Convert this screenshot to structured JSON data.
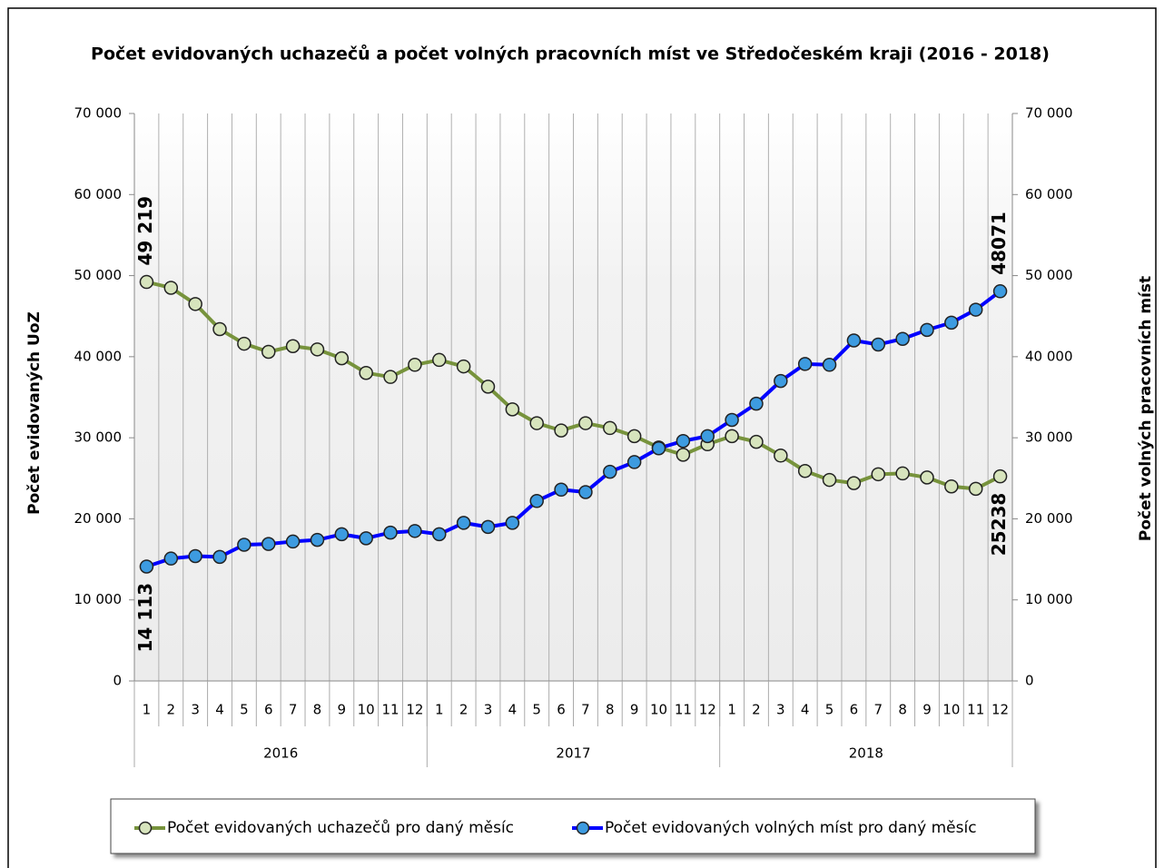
{
  "chart_data": {
    "type": "line",
    "title": "Počet evidovaných uchazečů a počet volných pracovních míst ve Středočeském kraji (2016 - 2018)",
    "ylabel": "Počet evidovaných UoZ",
    "y2label": "Počet volných pracovních míst",
    "categories": [
      "1",
      "2",
      "3",
      "4",
      "5",
      "6",
      "7",
      "8",
      "9",
      "10",
      "11",
      "12",
      "1",
      "2",
      "3",
      "4",
      "5",
      "6",
      "7",
      "8",
      "9",
      "10",
      "11",
      "12",
      "1",
      "2",
      "3",
      "4",
      "5",
      "6",
      "7",
      "8",
      "9",
      "10",
      "11",
      "12"
    ],
    "category_groups": [
      "2016",
      "2017",
      "2018"
    ],
    "series": [
      {
        "name": "Počet evidovaných uchazečů pro daný měsíc",
        "color": "#77933c",
        "marker_color": "#d7e4bd",
        "label_color": "#4f6228",
        "axis": "y",
        "values": [
          49219,
          48500,
          46500,
          43400,
          41600,
          40600,
          41300,
          40900,
          39800,
          38000,
          37500,
          39000,
          39600,
          38800,
          36300,
          33500,
          31800,
          30900,
          31800,
          31200,
          30200,
          28800,
          27900,
          29200,
          30200,
          29500,
          27800,
          25900,
          24800,
          24400,
          25500,
          25600,
          25100,
          24000,
          23700,
          25238
        ],
        "value_labels": [
          "49 219",
          null,
          null,
          null,
          null,
          null,
          null,
          null,
          null,
          null,
          null,
          null,
          null,
          null,
          null,
          null,
          null,
          null,
          null,
          null,
          null,
          null,
          null,
          null,
          null,
          null,
          null,
          null,
          null,
          null,
          null,
          null,
          null,
          null,
          null,
          "25238"
        ]
      },
      {
        "name": "Počet evidovaných volných míst pro daný měsíc",
        "color": "#0000ff",
        "marker_color": "#3d9be0",
        "label_color": "#0000ff",
        "axis": "y2",
        "values": [
          14113,
          15100,
          15400,
          15300,
          16800,
          16900,
          17200,
          17400,
          18100,
          17600,
          18300,
          18500,
          18100,
          19500,
          19000,
          19500,
          22200,
          23600,
          23300,
          25800,
          27000,
          28700,
          29600,
          30200,
          32200,
          34200,
          37000,
          39100,
          39000,
          42000,
          41500,
          42200,
          43300,
          44200,
          45800,
          48071
        ],
        "value_labels": [
          "14 113",
          null,
          null,
          null,
          null,
          null,
          null,
          null,
          null,
          null,
          null,
          null,
          null,
          null,
          null,
          null,
          null,
          null,
          null,
          null,
          null,
          null,
          null,
          null,
          null,
          null,
          null,
          null,
          null,
          null,
          null,
          null,
          null,
          null,
          null,
          "48071"
        ]
      }
    ],
    "ylim": [
      0,
      70000
    ],
    "yticks": [
      0,
      {
        "value": 10000,
        "label": "10 000"
      },
      {
        "value": 20000,
        "label": "20 000"
      },
      {
        "value": 30000,
        "label": "30 000"
      },
      {
        "value": 40000,
        "label": "40 000"
      },
      {
        "value": 50000,
        "label": "50 000"
      },
      {
        "value": 60000,
        "label": "60 000"
      },
      {
        "value": 70000,
        "label": "70 000"
      }
    ],
    "y2lim": [
      0,
      70000
    ],
    "y2ticks": [
      0,
      {
        "value": 10000,
        "label": "10 000"
      },
      {
        "value": 20000,
        "label": "20 000"
      },
      {
        "value": 30000,
        "label": "30 000"
      },
      {
        "value": 40000,
        "label": "40 000"
      },
      {
        "value": 50000,
        "label": "50 000"
      },
      {
        "value": 60000,
        "label": "60 000"
      },
      {
        "value": 70000,
        "label": "70 000"
      }
    ],
    "grid": true,
    "legend": "bottom"
  }
}
